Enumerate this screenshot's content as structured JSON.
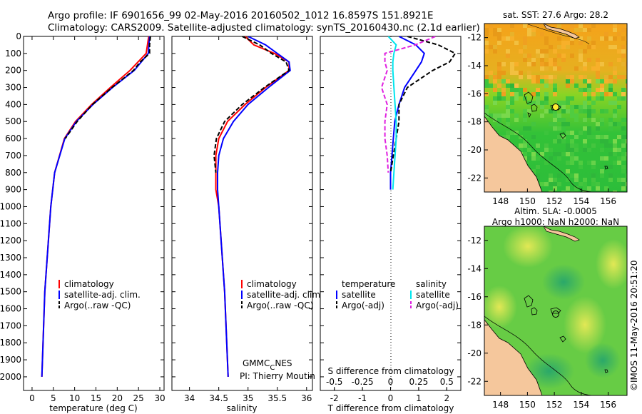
{
  "header": {
    "line1": "Argo profile: IF 6901656_99 02-May-2016 20160502_1012 16.8597S 151.8921E",
    "line2": "Climatology: CARS2009. Satellite-adjusted climatology: synTS_20160430.nc (2.1d earlier)"
  },
  "colors": {
    "clim": "#ff0000",
    "sat": "#0000ff",
    "argo": "#000000",
    "sal_sat": "#00e5ee",
    "sal_argo": "#e020e0"
  },
  "depth_ticks": [
    "0",
    "100",
    "200",
    "300",
    "400",
    "500",
    "600",
    "700",
    "800",
    "900",
    "1000",
    "1100",
    "1200",
    "1300",
    "1400",
    "1500",
    "1600",
    "1700",
    "1800",
    "1900",
    "2000"
  ],
  "chart_data": [
    {
      "type": "line",
      "xlabel": "temperature (deg C)",
      "xlim": [
        -2,
        31
      ],
      "ylim": [
        0,
        2080
      ],
      "xticks": [
        "0",
        "5",
        "10",
        "15",
        "20",
        "25",
        "30"
      ],
      "legend": [
        "climatology",
        "satellite-adj. clim.",
        "Argo(..raw -QC)"
      ],
      "series": [
        {
          "name": "climatology",
          "depth": [
            0,
            100,
            200,
            300,
            400,
            500,
            600,
            800,
            1000,
            1500,
            2000
          ],
          "values": [
            27.4,
            26.8,
            23,
            18.4,
            14,
            10.2,
            7.6,
            5.3,
            4.4,
            3,
            2.3
          ]
        },
        {
          "name": "satellite-adj. clim.",
          "depth": [
            0,
            100,
            200,
            300,
            400,
            500,
            600,
            800,
            1000,
            1500,
            2000
          ],
          "values": [
            27.6,
            27.3,
            24,
            18.9,
            14.3,
            10.4,
            7.7,
            5.3,
            4.4,
            3,
            2.3
          ]
        },
        {
          "name": "Argo(..raw -QC)",
          "depth": [
            0,
            50,
            100,
            150,
            200,
            300,
            400,
            500,
            600
          ],
          "values": [
            27.8,
            27.6,
            27.6,
            25.4,
            23.8,
            18.8,
            14.2,
            10.6,
            7.8
          ]
        }
      ]
    },
    {
      "type": "line",
      "xlabel": "salinity",
      "xlim": [
        33.7,
        36.1
      ],
      "ylim": [
        0,
        2080
      ],
      "xticks": [
        "34",
        "34.5",
        "35",
        "35.5",
        "36"
      ],
      "legend": [
        "climatology",
        "satellite-adj. clim.",
        "Argo(..raw -QC)"
      ],
      "credit1": "GMMC",
      "credit1_sub": "C",
      "credit1_end": "NES",
      "credit2": "PI: Thierry Moutin",
      "series": [
        {
          "name": "climatology",
          "depth": [
            0,
            50,
            100,
            150,
            200,
            300,
            400,
            500,
            600,
            700,
            800,
            900,
            1000,
            1500,
            2000
          ],
          "values": [
            34.95,
            35.1,
            35.45,
            35.7,
            35.7,
            35.3,
            34.95,
            34.65,
            34.5,
            34.45,
            34.45,
            34.45,
            34.5,
            34.6,
            34.66
          ]
        },
        {
          "name": "satellite-adj. clim.",
          "depth": [
            0,
            50,
            100,
            150,
            200,
            300,
            400,
            500,
            600,
            700,
            800,
            900,
            1000,
            1500,
            2000
          ],
          "values": [
            35.0,
            35.3,
            35.5,
            35.7,
            35.72,
            35.35,
            35.0,
            34.75,
            34.58,
            34.5,
            34.48,
            34.48,
            34.5,
            34.6,
            34.66
          ]
        },
        {
          "name": "Argo(..raw -QC)",
          "depth": [
            0,
            50,
            100,
            150,
            200,
            300,
            400,
            500,
            600,
            700,
            800
          ],
          "values": [
            34.9,
            35.2,
            35.4,
            35.65,
            35.7,
            35.28,
            34.9,
            34.6,
            34.46,
            34.42,
            34.45
          ]
        }
      ]
    },
    {
      "type": "line",
      "xlabel": "T difference from climatology",
      "xlabel_top": "S difference from climatology",
      "xlim": [
        -2.5,
        2.5
      ],
      "ylim": [
        0,
        2080
      ],
      "xticks": [
        "-2",
        "-1",
        "0",
        "1",
        "2"
      ],
      "xticks_top": [
        "-0.5",
        "-0.25",
        "0",
        "0.25",
        "0.5"
      ],
      "legend_titles": [
        "temperature",
        "salinity"
      ],
      "legend": [
        "satellite",
        "Argo(-adj)",
        "satellite",
        "Argo(-adj)"
      ],
      "series": [
        {
          "name": "temperature satellite",
          "depth": [
            0,
            50,
            100,
            150,
            200,
            300,
            400,
            500,
            600,
            700,
            800,
            900
          ],
          "values": [
            0.3,
            0.9,
            1.2,
            1.1,
            0.9,
            0.5,
            0.3,
            0.15,
            0.1,
            0.05,
            0,
            0
          ]
        },
        {
          "name": "temperature Argo(-adj)",
          "depth": [
            0,
            50,
            100,
            150,
            200,
            300,
            400,
            500,
            600,
            700,
            800
          ],
          "values": [
            0.6,
            1.7,
            2.3,
            2.1,
            1.5,
            0.6,
            0.3,
            0.3,
            0.2,
            0.1,
            0
          ]
        },
        {
          "name": "salinity satellite",
          "depth": [
            0,
            50,
            100,
            150,
            200,
            300,
            400,
            500,
            600,
            700,
            800,
            900
          ],
          "values": [
            -0.02,
            0.05,
            0.03,
            0.02,
            0.02,
            0.03,
            0.04,
            0.05,
            0.05,
            0.04,
            0.03,
            0.02
          ]
        },
        {
          "name": "salinity Argo(-adj)",
          "depth": [
            0,
            50,
            100,
            150,
            200,
            300,
            400,
            500,
            600,
            700,
            800
          ],
          "values": [
            0.4,
            0.22,
            -0.05,
            -0.05,
            -0.03,
            -0.08,
            -0.03,
            -0.05,
            -0.05,
            -0.03,
            -0.02
          ]
        }
      ]
    },
    {
      "type": "heatmap",
      "title": "sat. SST: 27.6 Argo: 28.2",
      "xticks": [
        "148",
        "150",
        "152",
        "154",
        "156"
      ],
      "yticks": [
        "-12",
        "-14",
        "-16",
        "-18",
        "-20",
        "-22"
      ],
      "xlim": [
        146.8,
        157.4
      ],
      "ylim": [
        -23,
        -11
      ],
      "argo_position": [
        151.9,
        -16.86
      ]
    },
    {
      "type": "heatmap",
      "title_line1": "Altim. SLA: -0.0005",
      "title_line2": "Argo h1000: NaN h2000: NaN",
      "xticks": [
        "148",
        "150",
        "152",
        "154",
        "156"
      ],
      "yticks": [
        "-12",
        "-14",
        "-16",
        "-18",
        "-20",
        "-22"
      ],
      "xlim": [
        146.8,
        157.4
      ],
      "ylim": [
        -23,
        -11
      ],
      "argo_position": [
        151.9,
        -16.86
      ]
    }
  ],
  "watermark": "©IMOS 11-May-2016 20:51:20"
}
